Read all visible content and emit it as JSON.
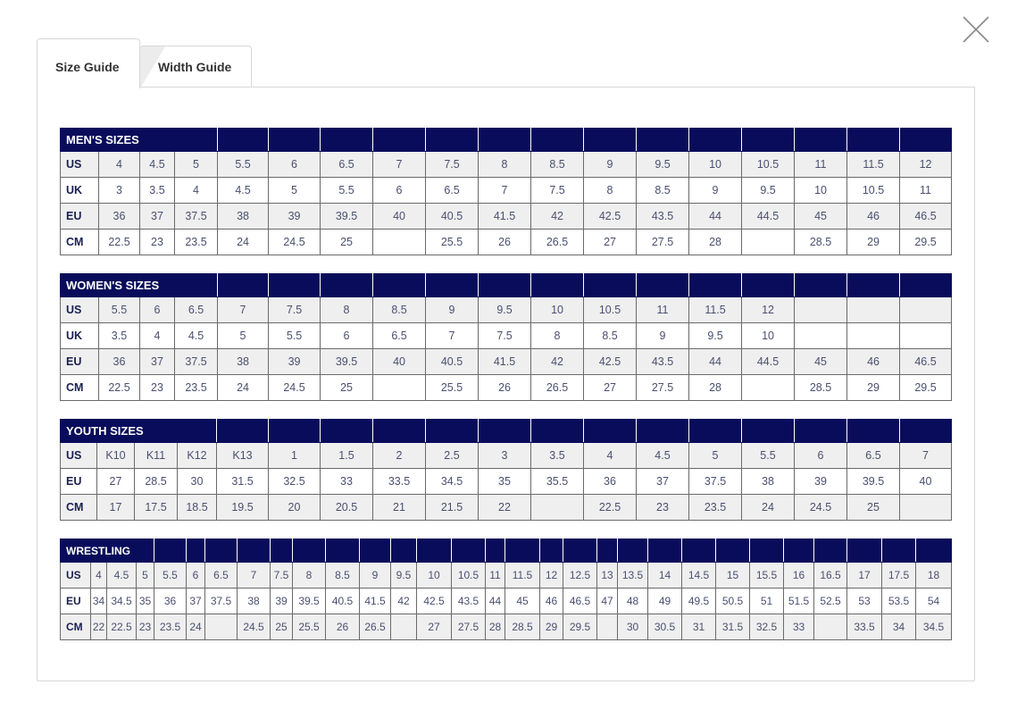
{
  "close_icon": "close-icon",
  "tabs": [
    {
      "label": "Size Guide",
      "active": true
    },
    {
      "label": "Width Guide",
      "active": false
    }
  ],
  "colors": {
    "header": "#080c5a",
    "row_alt": "#efefef"
  },
  "tables": {
    "mens": {
      "title": "MEN'S SIZES",
      "rows": [
        {
          "label": "US",
          "values": [
            "4",
            "4.5",
            "5",
            "5.5",
            "6",
            "6.5",
            "7",
            "7.5",
            "8",
            "8.5",
            "9",
            "9.5",
            "10",
            "10.5",
            "11",
            "11.5",
            "12"
          ]
        },
        {
          "label": "UK",
          "values": [
            "3",
            "3.5",
            "4",
            "4.5",
            "5",
            "5.5",
            "6",
            "6.5",
            "7",
            "7.5",
            "8",
            "8.5",
            "9",
            "9.5",
            "10",
            "10.5",
            "11"
          ]
        },
        {
          "label": "EU",
          "values": [
            "36",
            "37",
            "37.5",
            "38",
            "39",
            "39.5",
            "40",
            "40.5",
            "41.5",
            "42",
            "42.5",
            "43.5",
            "44",
            "44.5",
            "45",
            "46",
            "46.5"
          ]
        },
        {
          "label": "CM",
          "values": [
            "22.5",
            "23",
            "23.5",
            "24",
            "24.5",
            "25",
            "",
            "25.5",
            "26",
            "26.5",
            "27",
            "27.5",
            "28",
            "",
            "28.5",
            "29",
            "29.5"
          ]
        }
      ]
    },
    "womens": {
      "title": "WOMEN'S SIZES",
      "rows": [
        {
          "label": "US",
          "values": [
            "5.5",
            "6",
            "6.5",
            "7",
            "7.5",
            "8",
            "8.5",
            "9",
            "9.5",
            "10",
            "10.5",
            "11",
            "11.5",
            "12",
            "",
            "",
            ""
          ]
        },
        {
          "label": "UK",
          "values": [
            "3.5",
            "4",
            "4.5",
            "5",
            "5.5",
            "6",
            "6.5",
            "7",
            "7.5",
            "8",
            "8.5",
            "9",
            "9.5",
            "10",
            "",
            "",
            ""
          ]
        },
        {
          "label": "EU",
          "values": [
            "36",
            "37",
            "37.5",
            "38",
            "39",
            "39.5",
            "40",
            "40.5",
            "41.5",
            "42",
            "42.5",
            "43.5",
            "44",
            "44.5",
            "45",
            "46",
            "46.5"
          ]
        },
        {
          "label": "CM",
          "values": [
            "22.5",
            "23",
            "23.5",
            "24",
            "24.5",
            "25",
            "",
            "25.5",
            "26",
            "26.5",
            "27",
            "27.5",
            "28",
            "",
            "28.5",
            "29",
            "29.5"
          ]
        }
      ]
    },
    "youth": {
      "title": "YOUTH SIZES",
      "rows": [
        {
          "label": "US",
          "values": [
            "K10",
            "K11",
            "K12",
            "K13",
            "1",
            "1.5",
            "2",
            "2.5",
            "3",
            "3.5",
            "4",
            "4.5",
            "5",
            "5.5",
            "6",
            "6.5",
            "7"
          ]
        },
        {
          "label": "EU",
          "values": [
            "27",
            "28.5",
            "30",
            "31.5",
            "32.5",
            "33",
            "33.5",
            "34.5",
            "35",
            "35.5",
            "36",
            "37",
            "37.5",
            "38",
            "39",
            "39.5",
            "40"
          ]
        },
        {
          "label": "CM",
          "values": [
            "17",
            "17.5",
            "18.5",
            "19.5",
            "20",
            "20.5",
            "21",
            "21.5",
            "22",
            "",
            "22.5",
            "23",
            "23.5",
            "24",
            "24.5",
            "25",
            ""
          ]
        }
      ]
    },
    "wrestling": {
      "title": "WRESTLING",
      "rows": [
        {
          "label": "US",
          "values": [
            "4",
            "4.5",
            "5",
            "5.5",
            "6",
            "6.5",
            "7",
            "7.5",
            "8",
            "8.5",
            "9",
            "9.5",
            "10",
            "10.5",
            "11",
            "11.5",
            "12",
            "12.5",
            "13",
            "13.5",
            "14",
            "14.5",
            "15",
            "15.5",
            "16",
            "16.5",
            "17",
            "17.5",
            "18"
          ]
        },
        {
          "label": "EU",
          "values": [
            "34",
            "34.5",
            "35",
            "36",
            "37",
            "37.5",
            "38",
            "39",
            "39.5",
            "40.5",
            "41.5",
            "42",
            "42.5",
            "43.5",
            "44",
            "45",
            "46",
            "46.5",
            "47",
            "48",
            "49",
            "49.5",
            "50.5",
            "51",
            "51.5",
            "52.5",
            "53",
            "53.5",
            "54"
          ]
        },
        {
          "label": "CM",
          "values": [
            "22",
            "22.5",
            "23",
            "23.5",
            "24",
            "",
            "24.5",
            "25",
            "25.5",
            "26",
            "26.5",
            "",
            "27",
            "27.5",
            "28",
            "28.5",
            "29",
            "29.5",
            "",
            "30",
            "30.5",
            "31",
            "31.5",
            "32.5",
            "33",
            "",
            "33.5",
            "34",
            "34.5"
          ]
        }
      ]
    }
  }
}
